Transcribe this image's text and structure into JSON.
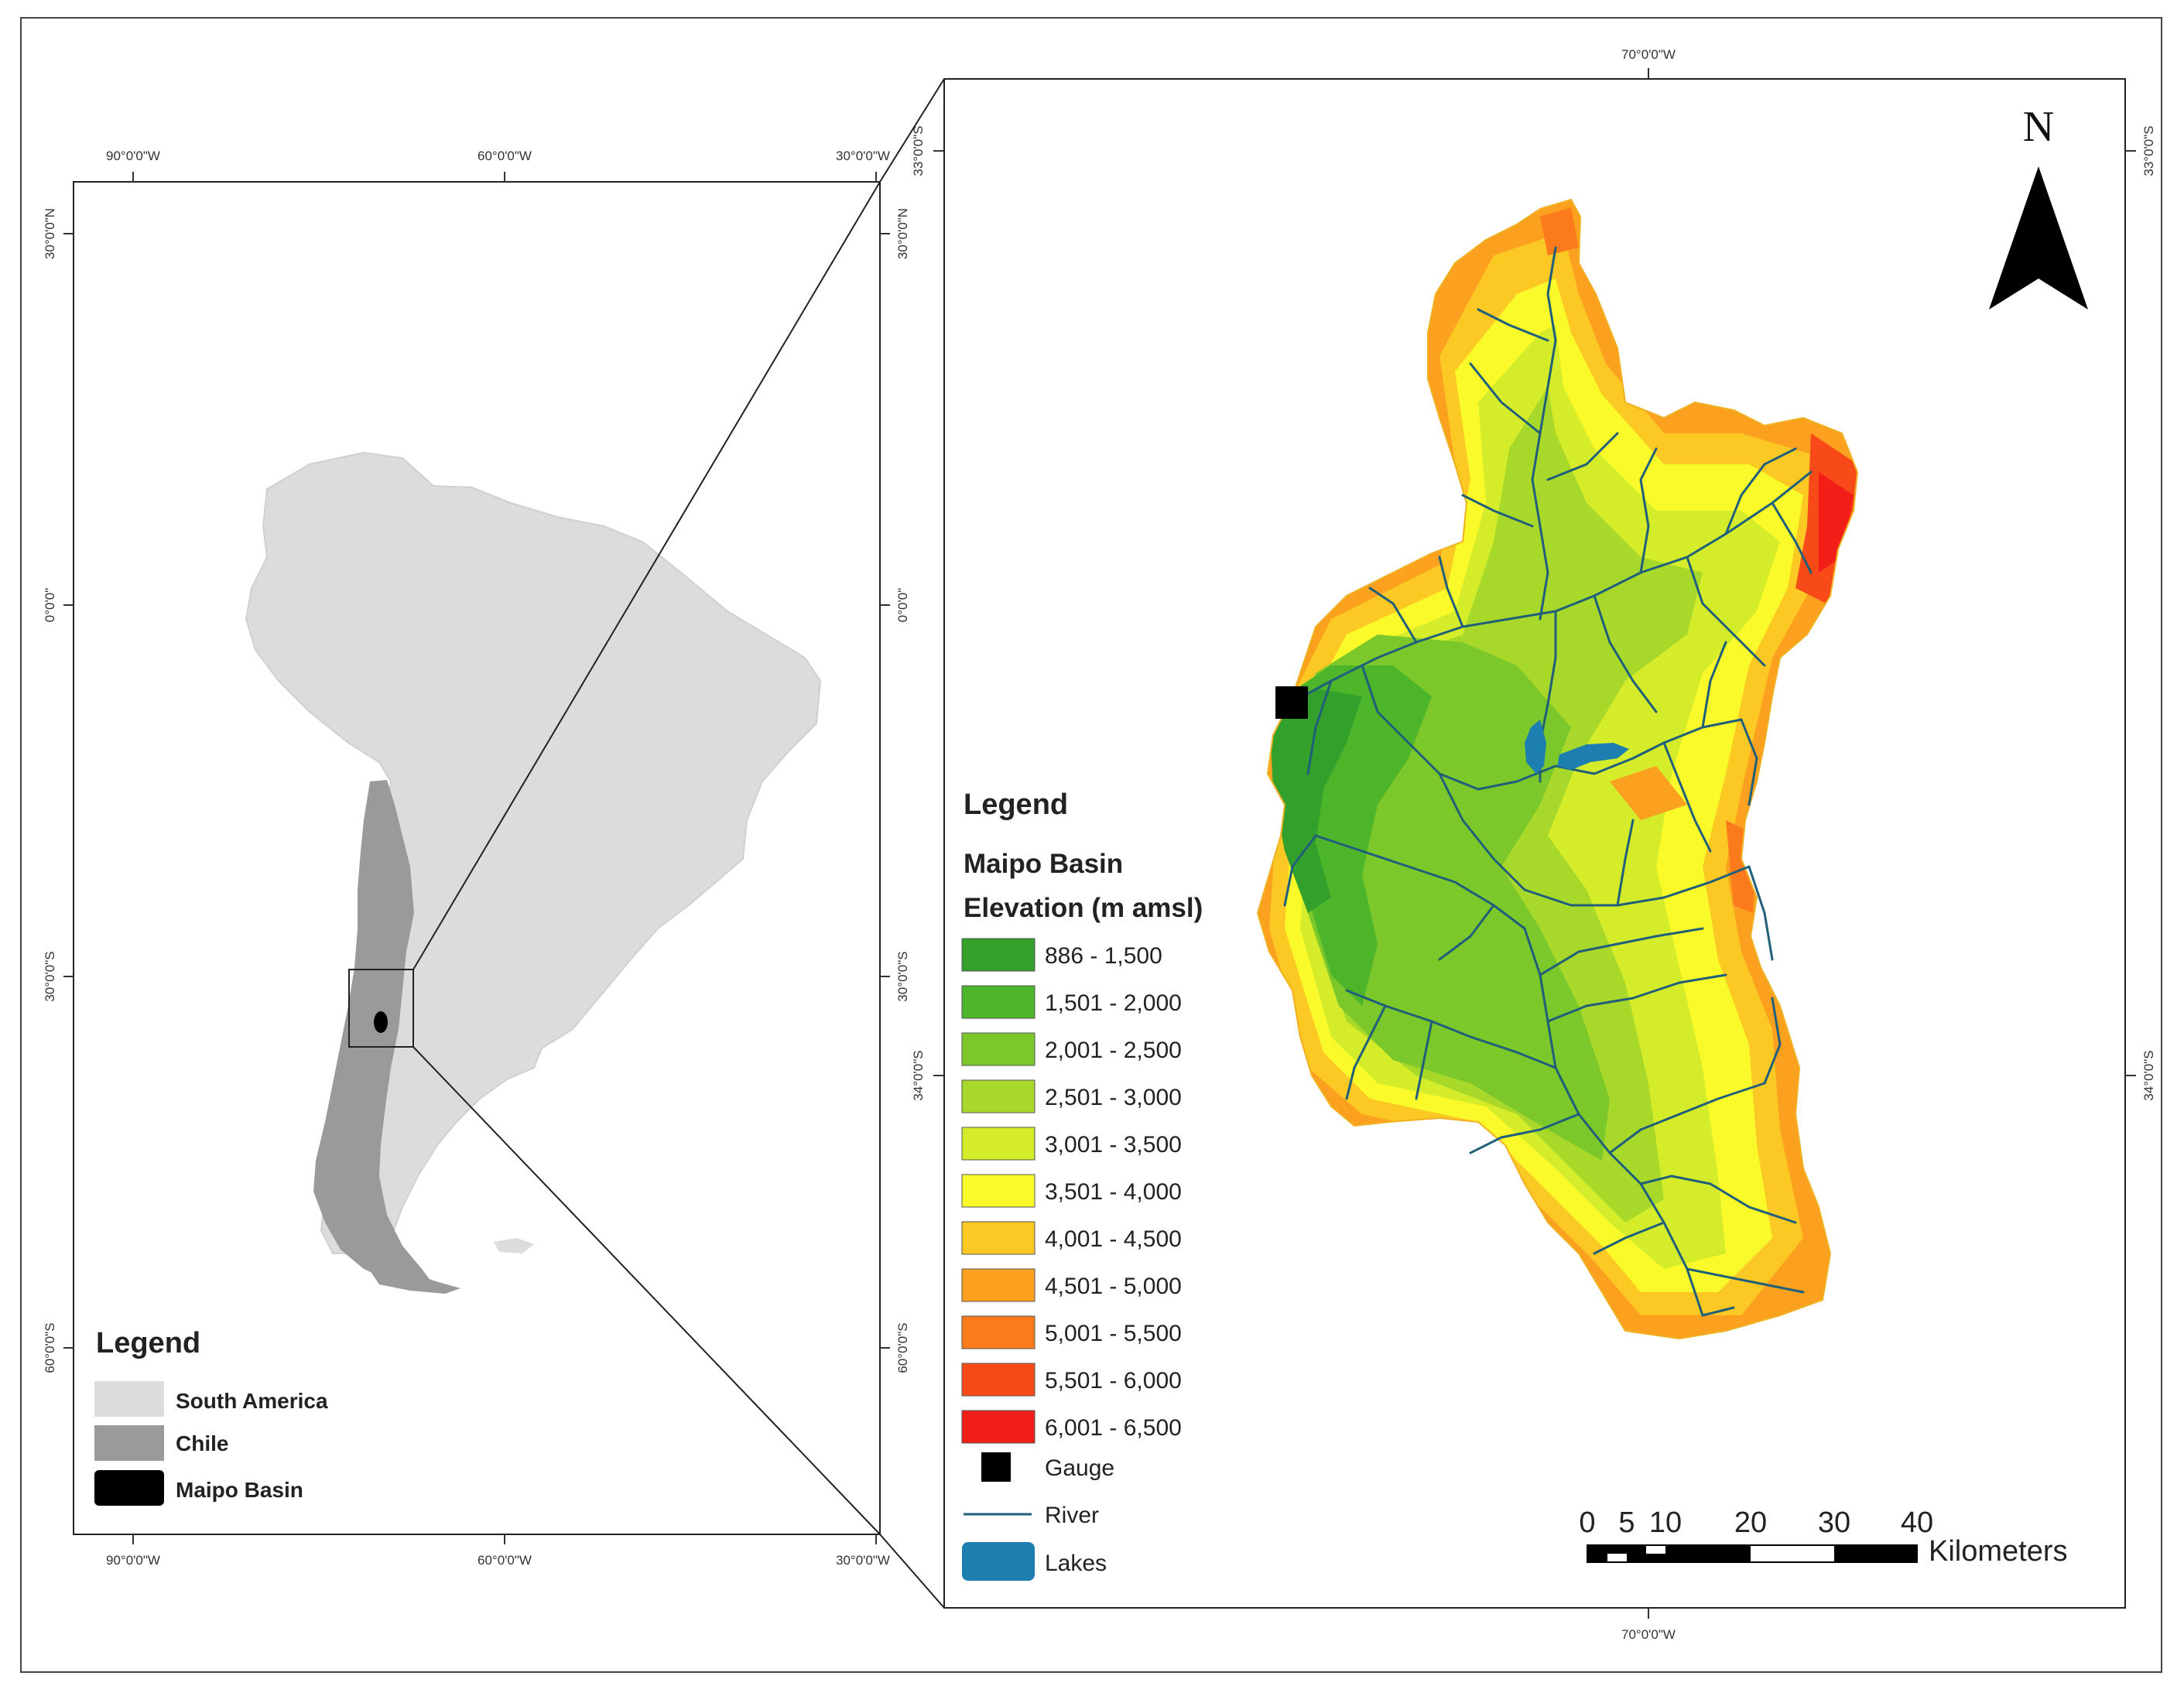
{
  "left_map": {
    "top_ticks": [
      "90°0'0\"W",
      "60°0'0\"W",
      "30°0'0\"W"
    ],
    "bottom_ticks": [
      "90°0'0\"W",
      "60°0'0\"W",
      "30°0'0\"W"
    ],
    "left_ticks": [
      "30°0'0\"N",
      "0°0'0\"",
      "30°0'0\"S",
      "60°0'0\"S"
    ],
    "right_ticks": [
      "30°0'0\"N",
      "0°0'0\"",
      "30°0'0\"S",
      "60°0'0\"S"
    ],
    "legend": {
      "title": "Legend",
      "items": [
        {
          "label": "South America",
          "color": "#dcdcdc"
        },
        {
          "label": "Chile",
          "color": "#9a9a9a"
        },
        {
          "label": "Maipo Basin",
          "color": "#000000"
        }
      ]
    }
  },
  "right_map": {
    "top_tick": "70°0'0\"W",
    "bottom_tick": "70°0'0\"W",
    "left_top_tick": "33°0'0\"S",
    "left_bottom_tick": "34°0'0\"S",
    "right_top_tick": "33°0'0\"S",
    "right_bottom_tick": "34°0'0\"S",
    "north_label": "N",
    "legend": {
      "title": "Legend",
      "subtitle1": "Maipo Basin",
      "subtitle2": "Elevation (m amsl)",
      "classes": [
        {
          "label": "886 - 1,500",
          "color": "#33a02c"
        },
        {
          "label": "1,501 - 2,000",
          "color": "#4db52a"
        },
        {
          "label": "2,001 - 2,500",
          "color": "#7cc82a"
        },
        {
          "label": "2,501 - 3,000",
          "color": "#a8d82a"
        },
        {
          "label": "3,001 - 3,500",
          "color": "#d4ec2a"
        },
        {
          "label": "3,501 - 4,000",
          "color": "#fafa2a"
        },
        {
          "label": "4,001 - 4,500",
          "color": "#fcc824"
        },
        {
          "label": "4,501 - 5,000",
          "color": "#fca020"
        },
        {
          "label": "5,001 - 5,500",
          "color": "#fb7a1c"
        },
        {
          "label": "5,501 - 6,000",
          "color": "#f84a18"
        },
        {
          "label": "6,001 - 6,500",
          "color": "#f21e18"
        }
      ],
      "gauge_label": "Gauge",
      "river_label": "River",
      "lakes_label": "Lakes",
      "river_color": "#1f5f7a",
      "lake_color": "#1d7fb0"
    },
    "scalebar": {
      "numbers": [
        "0",
        "5",
        "10",
        "20",
        "30",
        "40"
      ],
      "unit": "Kilometers"
    }
  }
}
